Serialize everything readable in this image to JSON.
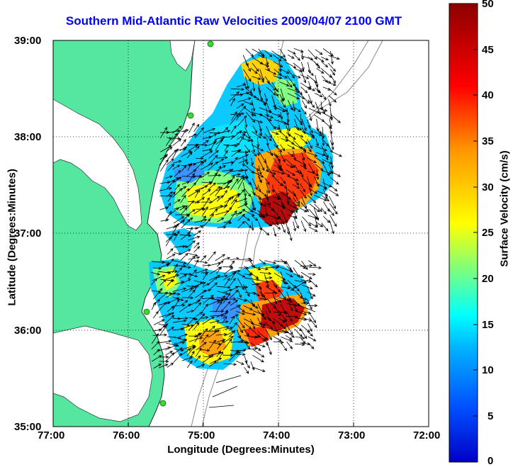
{
  "title": "Southern Mid-Atlantic Raw Velocities 2009/04/07 2100 GMT",
  "map": {
    "x_label": "Longitude (Degrees:Minutes)",
    "y_label": "Latitude (Degrees:Minutes)",
    "x_ticks": [
      "77:00",
      "76:00",
      "75:00",
      "74:00",
      "73:00",
      "72:00"
    ],
    "y_ticks": [
      "39:00",
      "38:00",
      "37:00",
      "36:00",
      "35:00"
    ],
    "lon_range": [
      -77,
      -72
    ],
    "lat_range": [
      35,
      39
    ],
    "grid": "dotted",
    "land_color": "#55e6a0",
    "ocean_color": "#ffffff",
    "stations": [
      {
        "lon": -75.1,
        "lat": 38.95
      },
      {
        "lon": -75.7,
        "lat": 38.2
      },
      {
        "lon": -75.7,
        "lat": 36.2
      },
      {
        "lon": -75.5,
        "lat": 35.25
      }
    ]
  },
  "colorbar": {
    "label": "Surface Velocity (cm/s)",
    "ticks": [
      "50",
      "45",
      "40",
      "35",
      "30",
      "25",
      "20",
      "15",
      "10",
      "5",
      "0"
    ],
    "min": 0,
    "max": 50,
    "colors": [
      "#0000c8",
      "#0050ff",
      "#00b4ff",
      "#00ffff",
      "#7dff7d",
      "#ffff00",
      "#ff9600",
      "#ff0000",
      "#8c0000"
    ]
  }
}
